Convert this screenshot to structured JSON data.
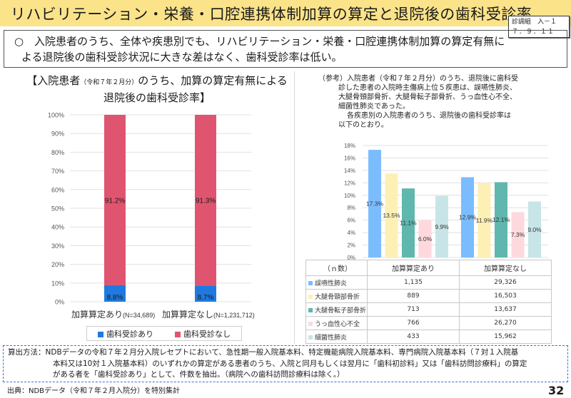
{
  "header": {
    "title": "リハビリテーション・栄養・口腔連携体制加算の算定と退院後の歯科受診率",
    "badge_line1": "診調組　入－１",
    "badge_line2": "７．９．１１"
  },
  "summary": {
    "bullet": "○",
    "line1": "入院患者のうち、全体や疾患別でも、リハビリテーション・栄養・口腔連携体制加算の算定有無に",
    "line2": "よる退院後の歯科受診状況に大きな差はなく、歯科受診率は低い。"
  },
  "left_panel": {
    "heading_part1": "【入院患者",
    "heading_small": "（令和７年２月分）",
    "heading_part2": "のうち、加算の算定有無による",
    "heading_line2": "退院後の歯科受診率】"
  },
  "right_panel": {
    "ref_lines": [
      "（参考）入院患者（令和７年２月分）のうち、退院後に歯科受",
      "診した患者の入院時主傷病上位５疾患は、誤嚥性肺炎、",
      "大腿骨頸部骨折、大腿骨転子部骨折、うっ血性心不全、",
      "細菌性肺炎であった。",
      "各疾患別の入院患者のうち、退院後の歯科受診率は",
      "以下のとおり。"
    ]
  },
  "chart_data": [
    {
      "type": "bar",
      "stacked": true,
      "title": "【入院患者（令和７年２月分）のうち、加算の算定有無による退院後の歯科受診率】",
      "categories": [
        "加算算定あり",
        "加算算定なし"
      ],
      "category_notes": [
        "(N=34,689)",
        "(N=1,231,712)"
      ],
      "series": [
        {
          "name": "歯科受診あり",
          "values": [
            8.8,
            8.7
          ],
          "color": "#1f7ae0"
        },
        {
          "name": "歯科受診なし",
          "values": [
            91.2,
            91.3
          ],
          "color": "#df5570"
        }
      ],
      "data_labels": [
        "8.8%",
        "8.7%",
        "91.2%",
        "91.3%"
      ],
      "yticks": [
        "0%",
        "10%",
        "20%",
        "30%",
        "40%",
        "50%",
        "60%",
        "70%",
        "80%",
        "90%",
        "100%"
      ],
      "ylim": [
        0,
        100
      ],
      "grid": true,
      "legend": "bottom",
      "xlabel": "",
      "ylabel": ""
    },
    {
      "type": "bar",
      "stacked": false,
      "title": "",
      "categories": [
        "加算算定あり",
        "加算算定なし"
      ],
      "series": [
        {
          "name": "誤嚥性肺炎",
          "values": [
            17.3,
            12.9
          ],
          "color": "#7bbcff"
        },
        {
          "name": "大腿骨頸部骨折",
          "values": [
            13.5,
            11.9
          ],
          "color": "#fdf0b4"
        },
        {
          "name": "大腿骨転子部骨折",
          "values": [
            11.1,
            12.1
          ],
          "color": "#5fb7ad"
        },
        {
          "name": "うっ血性心不全",
          "values": [
            6.0,
            7.3
          ],
          "color": "#fdd9de"
        },
        {
          "name": "細菌性肺炎",
          "values": [
            9.9,
            9.0
          ],
          "color": "#c7e5e6"
        }
      ],
      "yticks": [
        "0%",
        "2%",
        "4%",
        "6%",
        "8%",
        "10%",
        "12%",
        "14%",
        "16%",
        "18%"
      ],
      "ylim": [
        0,
        18
      ],
      "grid": true,
      "legend": "table-below",
      "xlabel": "",
      "ylabel": ""
    }
  ],
  "n_table": {
    "header": [
      "（ｎ数）",
      "加算算定あり",
      "加算算定なし"
    ],
    "rows": [
      {
        "label": "誤嚥性肺炎",
        "color": "#7bbcff",
        "with": "1,135",
        "without": "29,326"
      },
      {
        "label": "大腿骨頸部骨折",
        "color": "#fdf0b4",
        "with": "889",
        "without": "16,503"
      },
      {
        "label": "大腿骨転子部骨折",
        "color": "#5fb7ad",
        "with": "713",
        "without": "13,637"
      },
      {
        "label": "うっ血性心不全",
        "color": "#fdd9de",
        "with": "766",
        "without": "26,270"
      },
      {
        "label": "細菌性肺炎",
        "color": "#c7e5e6",
        "with": "433",
        "without": "15,962"
      }
    ]
  },
  "footer": {
    "method_key": "算出方法：",
    "method_line1": "NDBデータの令和７年２月分入院レセプトにおいて、急性期一般入院基本料、特定機能病院入院基本料、専門病院入院基本料（７対１入院基",
    "method_line2": "本料又は10対１入院基本料）のいずれかの算定がある患者のうち、入院と同月もしくは翌月に「歯科初診料」又は「歯科訪問診療料」の算定",
    "method_line3": "がある者を「歯科受診あり」として、件数を抽出。（病院への歯科訪問診療料は除く。）",
    "source": "出典：NDBデータ（令和７年２月入院分）を特別集計",
    "page_number": "32"
  }
}
